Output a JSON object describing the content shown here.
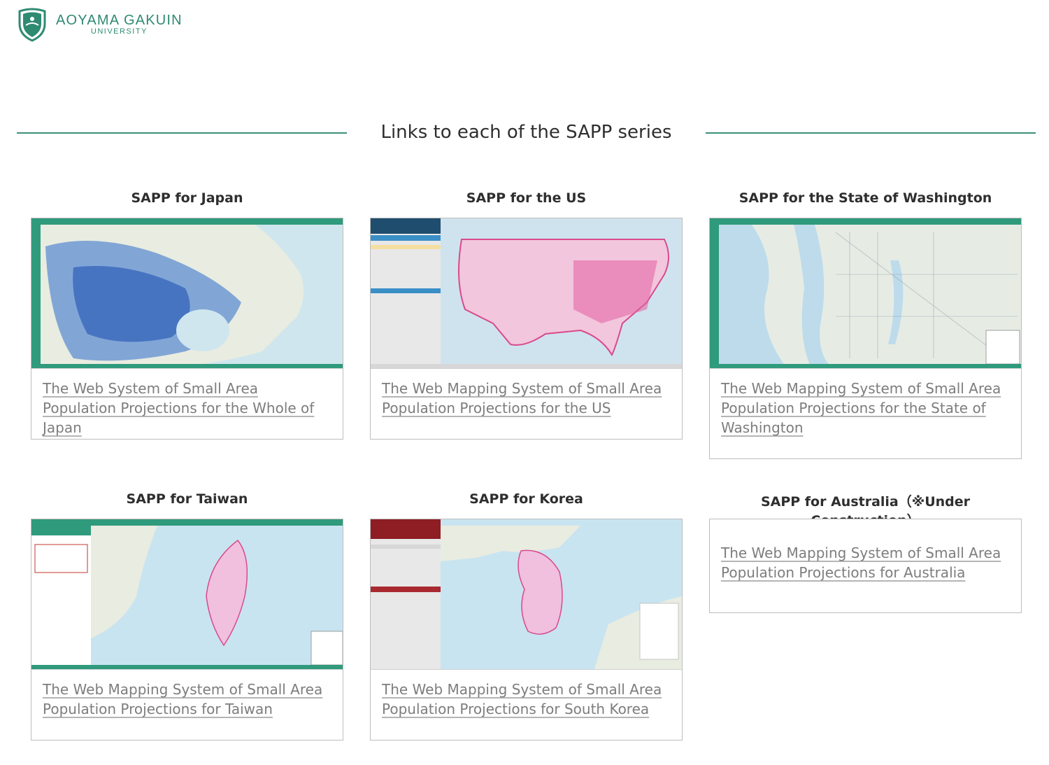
{
  "header": {
    "logo_name": "AOYAMA GAKUIN",
    "logo_sub": "UNIVERSITY",
    "brand_color": "#2f8a72"
  },
  "section": {
    "title": "Links to each of the SAPP series"
  },
  "cards": [
    {
      "title": "SAPP for Japan",
      "link": "The Web System of Small Area Population Projections for the Whole of Japan"
    },
    {
      "title": "SAPP for the US",
      "link": "The Web Mapping System of Small Area Population Projections for the US"
    },
    {
      "title": "SAPP for the State of Washington",
      "link": "The Web Mapping System of Small Area Population Projections for the State of Washington"
    },
    {
      "title": "SAPP for Taiwan",
      "link": "The Web Mapping System of Small Area Population Projections for Taiwan"
    },
    {
      "title": "SAPP for Korea",
      "link": "The Web Mapping System of Small Area Population Projections for South Korea"
    },
    {
      "title": "SAPP for Australia（※Under Construction）",
      "link": "The Web Mapping System of Small Area Population Projections for Australia"
    }
  ]
}
